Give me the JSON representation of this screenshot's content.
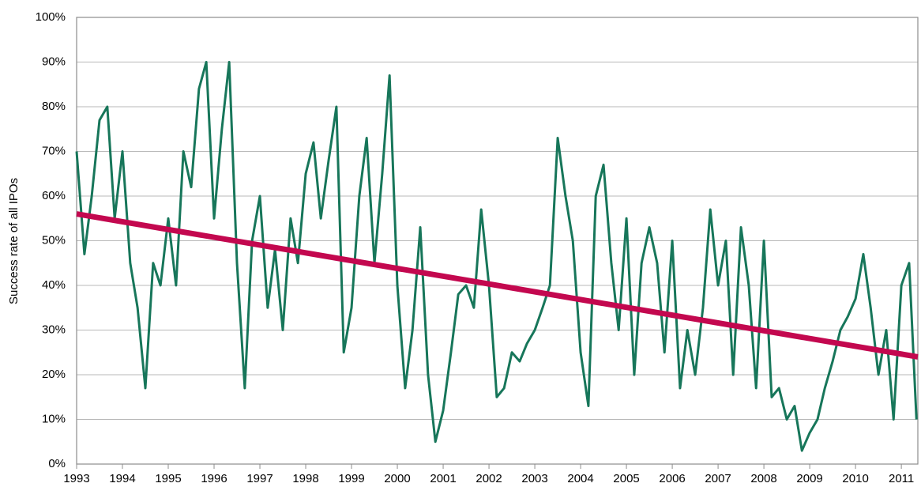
{
  "chart_data": {
    "type": "line",
    "y_label": "Success rate of all IPOs",
    "xlim": [
      1993,
      2011.36
    ],
    "xticks": [
      1993,
      1994,
      1995,
      1996,
      1997,
      1998,
      1999,
      2000,
      2001,
      2002,
      2003,
      2004,
      2005,
      2006,
      2007,
      2008,
      2009,
      2010,
      2011
    ],
    "ylim": [
      0,
      100
    ],
    "yticks": [
      {
        "value": 0,
        "label": "0%"
      },
      {
        "value": 10,
        "label": "10%"
      },
      {
        "value": 20,
        "label": "20%"
      },
      {
        "value": 30,
        "label": "30%"
      },
      {
        "value": 40,
        "label": "40%"
      },
      {
        "value": 50,
        "label": "50%"
      },
      {
        "value": 60,
        "label": "60%"
      },
      {
        "value": 70,
        "label": "70%"
      },
      {
        "value": 80,
        "label": "80%"
      },
      {
        "value": 90,
        "label": "90%"
      },
      {
        "value": 100,
        "label": "100%"
      }
    ],
    "grid": true,
    "series": [
      {
        "color": "#17765a",
        "width": 3,
        "x": [
          1993,
          1993.17,
          1993.33,
          1993.5,
          1993.67,
          1993.83,
          1994,
          1994.17,
          1994.33,
          1994.5,
          1994.67,
          1994.83,
          1995,
          1995.17,
          1995.33,
          1995.5,
          1995.67,
          1995.83,
          1996,
          1996.17,
          1996.33,
          1996.5,
          1996.67,
          1996.83,
          1997,
          1997.17,
          1997.33,
          1997.5,
          1997.67,
          1997.83,
          1998,
          1998.17,
          1998.33,
          1998.5,
          1998.67,
          1998.83,
          1999,
          1999.17,
          1999.33,
          1999.5,
          1999.67,
          1999.83,
          2000,
          2000.17,
          2000.33,
          2000.5,
          2000.67,
          2000.83,
          2001,
          2001.17,
          2001.33,
          2001.5,
          2001.67,
          2001.83,
          2002,
          2002.17,
          2002.33,
          2002.5,
          2002.67,
          2002.83,
          2003,
          2003.17,
          2003.33,
          2003.5,
          2003.67,
          2003.83,
          2004,
          2004.17,
          2004.33,
          2004.5,
          2004.67,
          2004.83,
          2005,
          2005.17,
          2005.33,
          2005.5,
          2005.67,
          2005.83,
          2006,
          2006.17,
          2006.33,
          2006.5,
          2006.67,
          2006.83,
          2007,
          2007.17,
          2007.33,
          2007.5,
          2007.67,
          2007.83,
          2008,
          2008.17,
          2008.33,
          2008.5,
          2008.67,
          2008.83,
          2009,
          2009.17,
          2009.33,
          2009.5,
          2009.67,
          2009.83,
          2010,
          2010.17,
          2010.33,
          2010.5,
          2010.67,
          2010.83,
          2011,
          2011.17,
          2011.33
        ],
        "values": [
          70,
          47,
          60,
          77,
          80,
          55,
          70,
          45,
          35,
          17,
          45,
          40,
          55,
          40,
          70,
          62,
          84,
          90,
          55,
          75,
          90,
          45,
          17,
          50,
          60,
          35,
          48,
          30,
          55,
          45,
          65,
          72,
          55,
          68,
          80,
          25,
          35,
          60,
          73,
          45,
          65,
          87,
          40,
          17,
          30,
          53,
          20,
          5,
          12,
          25,
          38,
          40,
          35,
          57,
          40,
          15,
          17,
          25,
          23,
          27,
          30,
          35,
          40,
          73,
          60,
          50,
          25,
          13,
          60,
          67,
          45,
          30,
          55,
          20,
          45,
          53,
          45,
          25,
          50,
          17,
          30,
          20,
          35,
          57,
          40,
          50,
          20,
          53,
          40,
          17,
          50,
          15,
          17,
          10,
          13,
          3,
          7,
          10,
          17,
          23,
          30,
          33,
          37,
          47,
          35,
          20,
          30,
          10,
          40,
          45,
          10
        ]
      },
      {
        "color": "#c3084f",
        "width": 7,
        "x": [
          1993,
          2011.36
        ],
        "values": [
          56,
          24
        ]
      }
    ]
  }
}
